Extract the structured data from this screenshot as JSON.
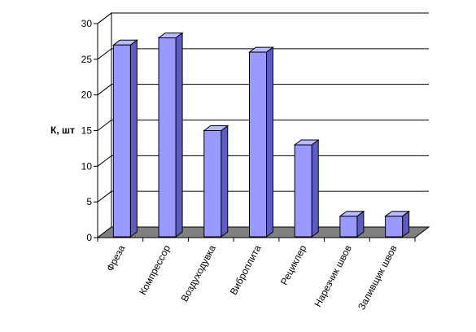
{
  "chart_data": {
    "type": "bar",
    "title": "",
    "xlabel": "",
    "ylabel": "К, шт",
    "ylim": [
      0,
      30
    ],
    "yticks": [
      0,
      5,
      10,
      15,
      20,
      25,
      30
    ],
    "grid": true,
    "legend": "none",
    "three_d": true,
    "categories": [
      "Фреза",
      "Компрессор",
      "Воздуходувка",
      "Виброплита",
      "Рециклер",
      "Нарезчик швов",
      "Заливщик швов"
    ],
    "series": [
      {
        "values": [
          27,
          28,
          15,
          26,
          13,
          3,
          3
        ]
      }
    ],
    "colors": {
      "bar_front": "#9999ff",
      "bar_side": "#5c5cc4",
      "bar_top": "#bbbbff",
      "floor": "#808080",
      "grid": "#000000"
    }
  }
}
